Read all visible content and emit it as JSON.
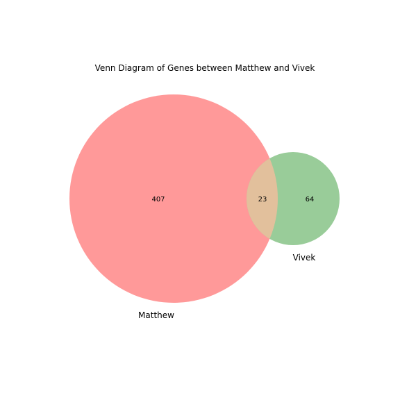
{
  "diagram": {
    "title": "Venn Diagram of Genes between Matthew and Vivek",
    "sets": [
      {
        "name": "Matthew",
        "color": "#ff9999",
        "only_count": "407"
      },
      {
        "name": "Vivek",
        "color": "#99cc99",
        "only_count": "64"
      }
    ],
    "intersection": {
      "count": "23",
      "color": "#e2c09c"
    }
  }
}
